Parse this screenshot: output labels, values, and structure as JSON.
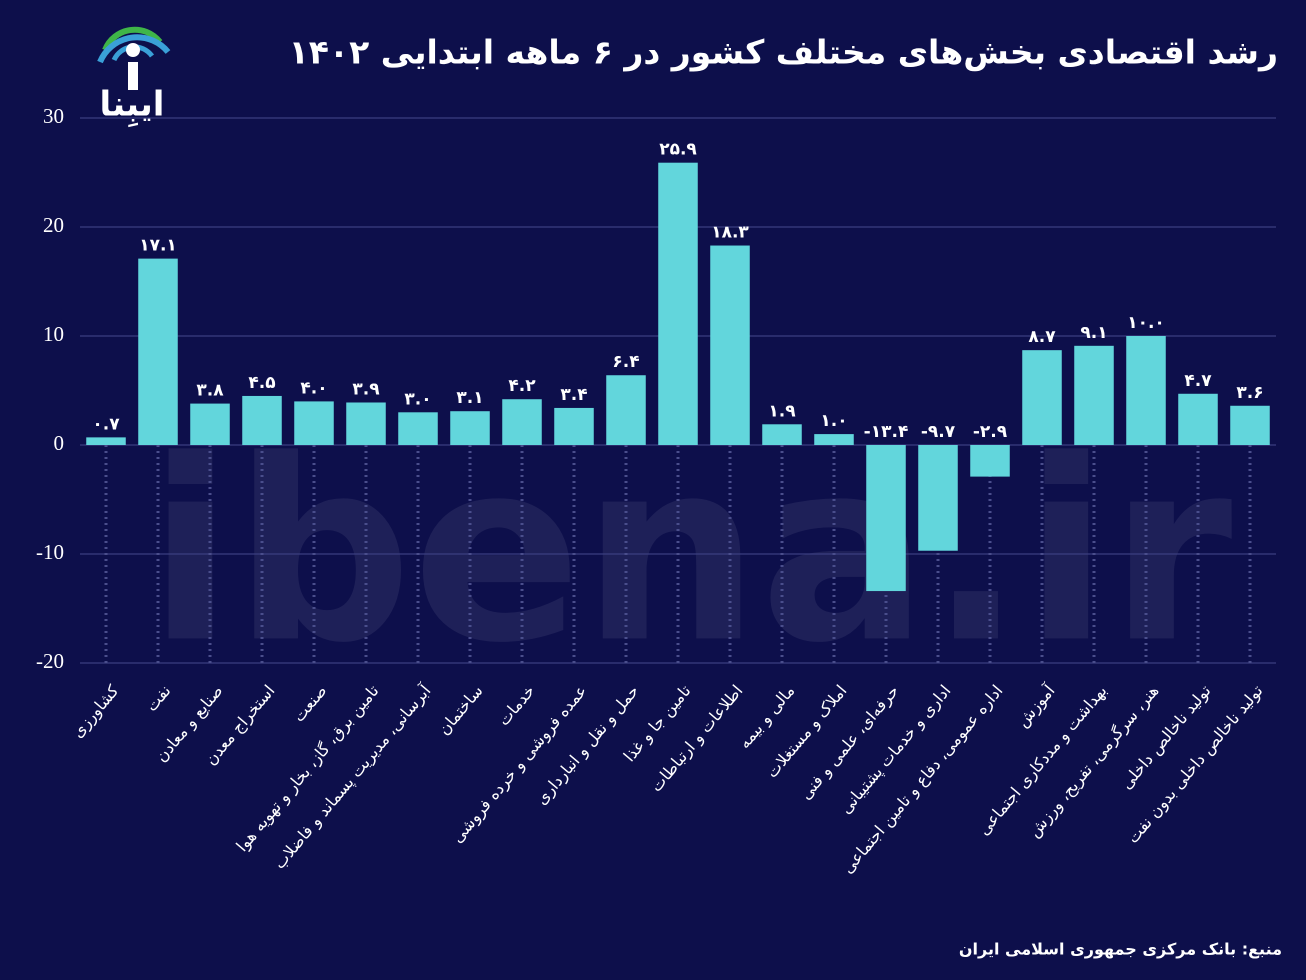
{
  "logo": "ایبِنا",
  "watermark": "ibena.ir",
  "chart_data": {
    "type": "bar",
    "title": "رشد اقتصادی بخش‌های مختلف کشور در ۶ ماهه ابتدایی ۱۴۰۲",
    "source": "منبع: بانک مرکزی جمهوری اسلامی ایران",
    "categories": [
      "کشاورزی",
      "نفت",
      "صنایع و معادن",
      "استخراج معدن",
      "صنعت",
      "تامین برق، گاز، بخار و تهویه هوا",
      "آبرسانی، مدیریت پسماند و فاضلاب",
      "ساختمان",
      "خدمات",
      "عمده فروشی و خرده فروشی",
      "حمل و نقل و انبارداری",
      "تامین جا و غذا",
      "اطلاعات و ارتباطات",
      "مالی و بیمه",
      "املاک و مستغلات",
      "حرفه‌ای، علمی و فنی",
      "اداری و خدمات پشتیبانی",
      "اداره عمومی، دفاع و تامین اجتماعی",
      "آموزش",
      "بهداشت و مددکاری اجتماعی",
      "هنر، سرگرمی، تفریح، ورزش",
      "تولید ناخالص داخلی",
      "تولید ناخالص داخلی بدون نفت"
    ],
    "values": [
      0.7,
      17.1,
      3.8,
      4.5,
      4.0,
      3.9,
      3.0,
      3.1,
      4.2,
      3.4,
      6.4,
      25.9,
      18.3,
      1.9,
      1.0,
      -13.4,
      -9.7,
      -2.9,
      8.7,
      9.1,
      10.0,
      4.7,
      3.6
    ],
    "value_labels": [
      "۰.۷",
      "۱۷.۱",
      "۳.۸",
      "۴.۵",
      "۴.۰",
      "۳.۹",
      "۳.۰",
      "۳.۱",
      "۴.۲",
      "۳.۴",
      "۶.۴",
      "۲۵.۹",
      "۱۸.۳",
      "۱.۹",
      "۱.۰",
      "-۱۳.۴",
      "-۹.۷",
      "-۲.۹",
      "۸.۷",
      "۹.۱",
      "۱۰.۰",
      "۴.۷",
      "۳.۶"
    ],
    "color": "#62d6dc",
    "ylim": [
      -20,
      30
    ],
    "yticks": [
      -20,
      -10,
      0,
      10,
      20,
      30
    ],
    "grid": true
  }
}
